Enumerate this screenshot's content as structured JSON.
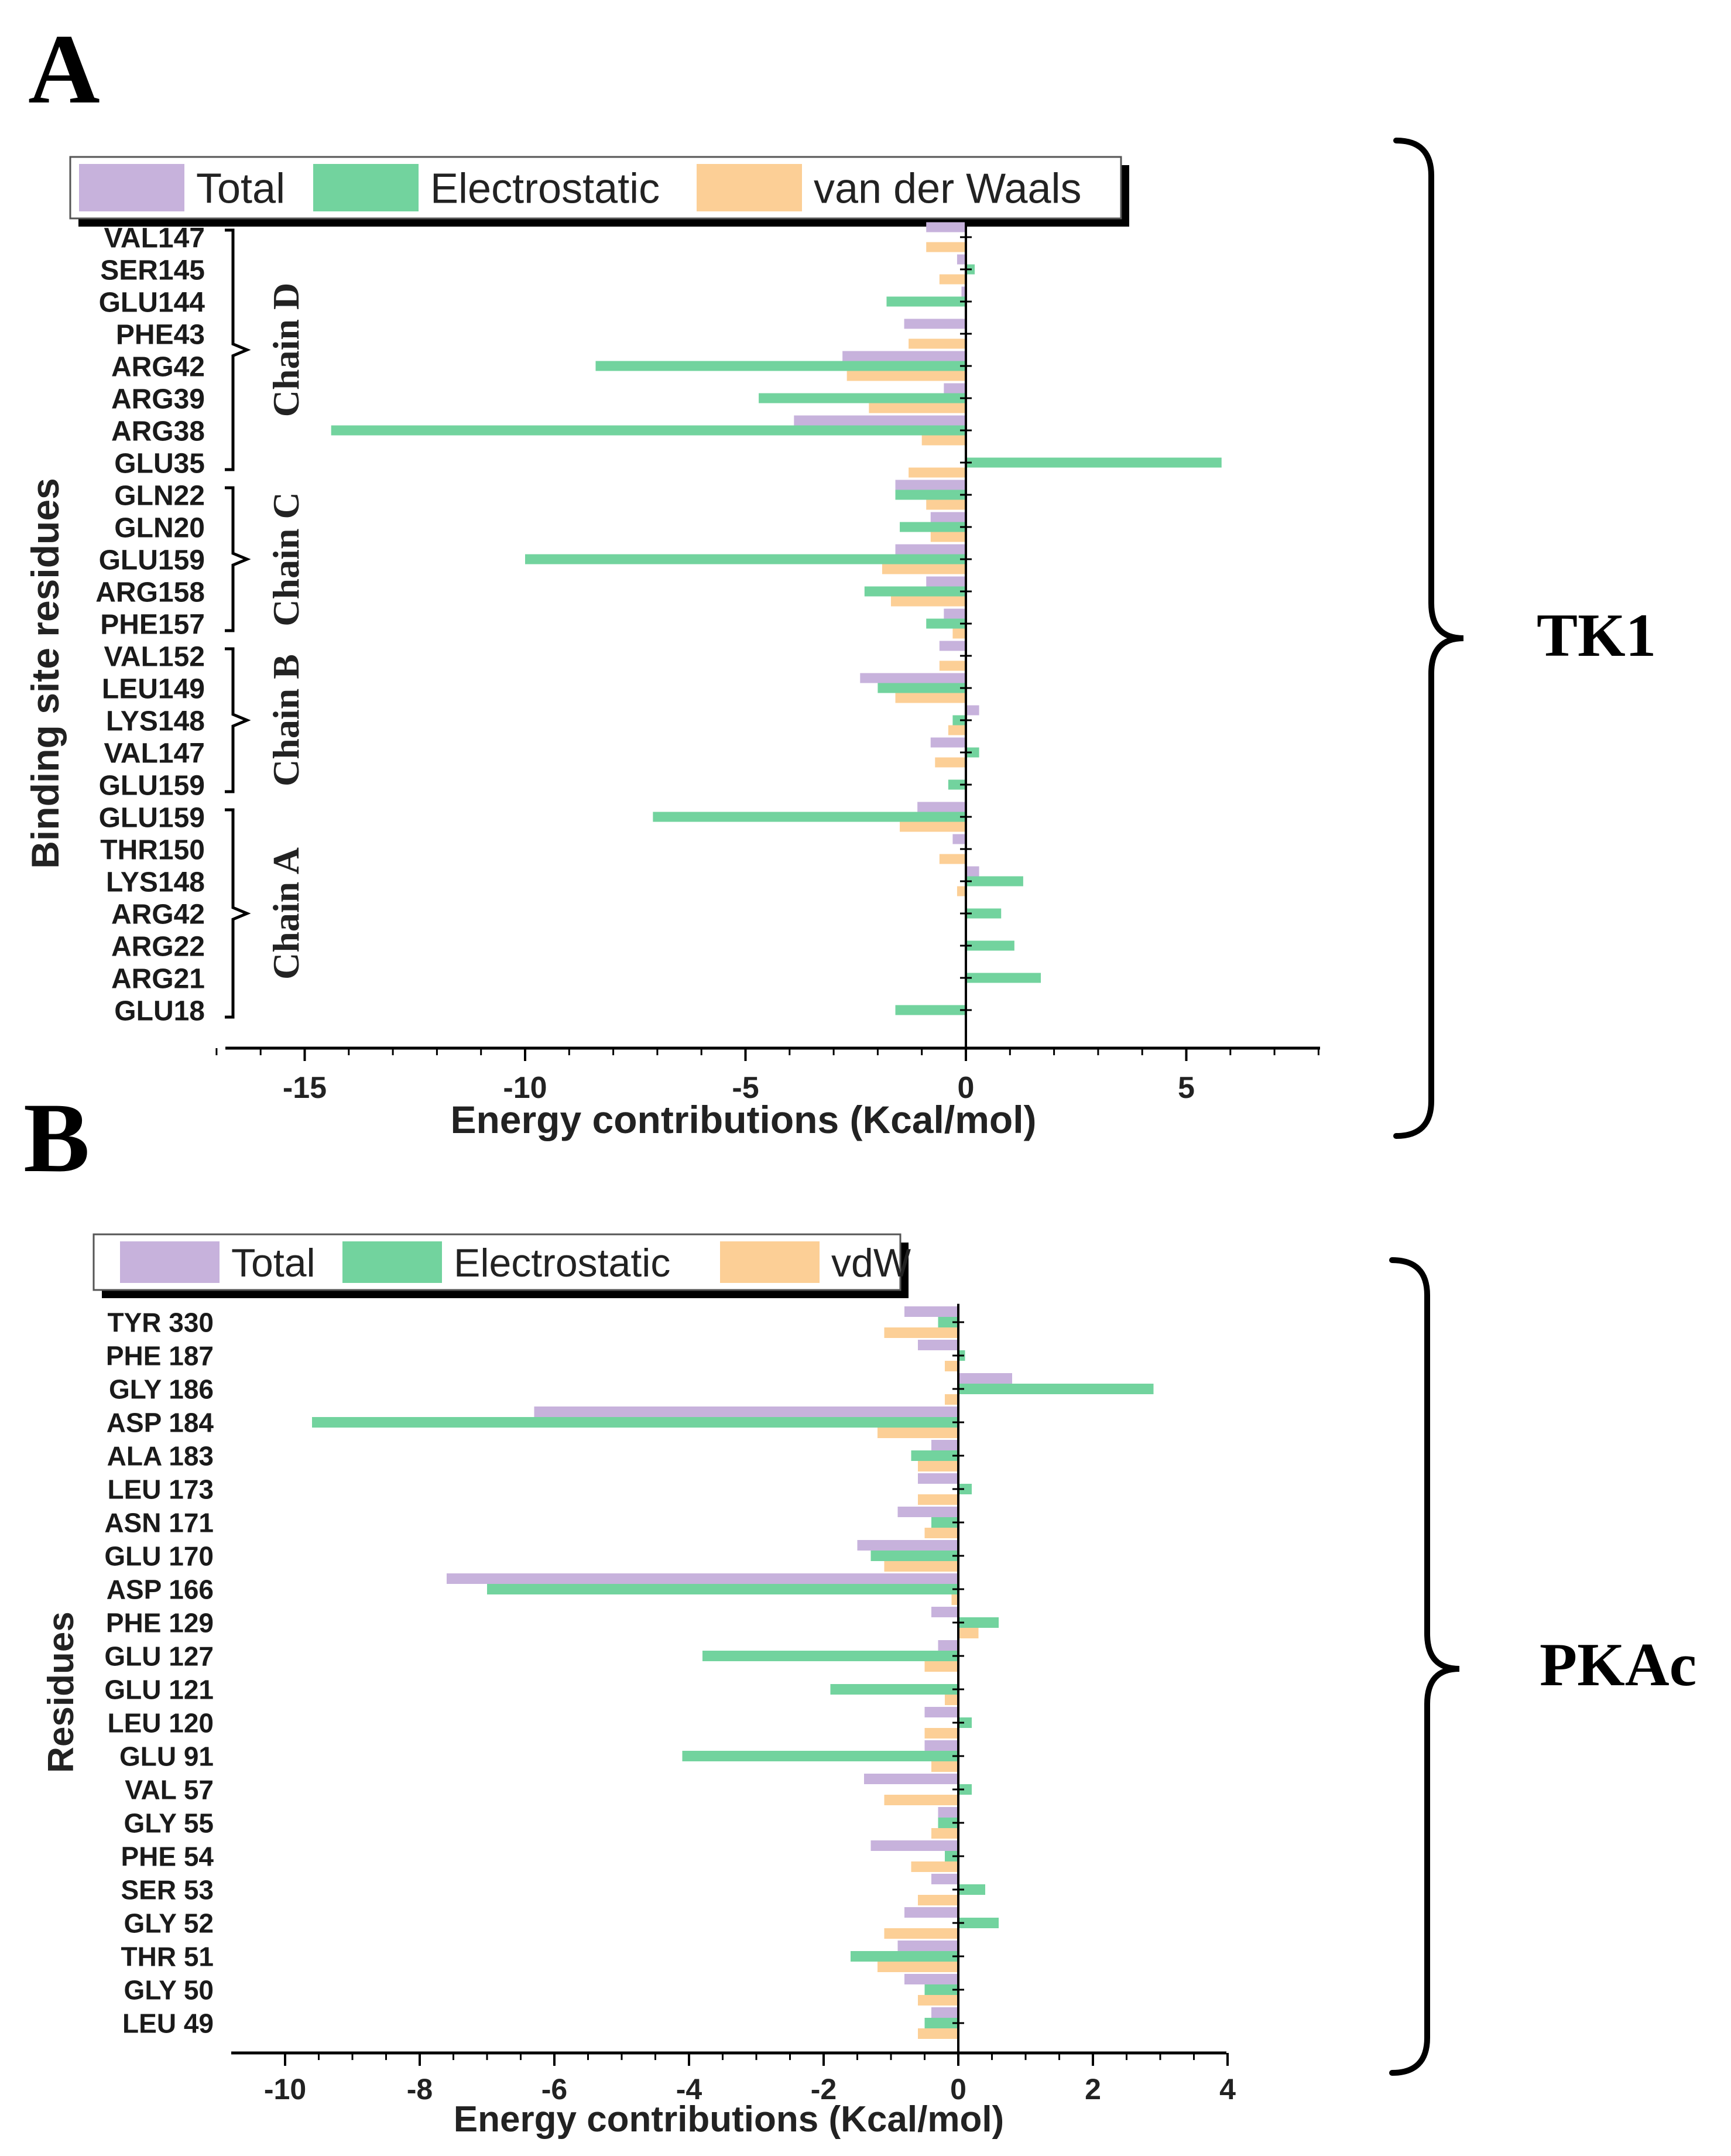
{
  "colors": {
    "total": "#c7b2dc",
    "electrostatic": "#72d39e",
    "vdw": "#fccf96"
  },
  "chart_data": [
    {
      "panel": "A",
      "type": "bar",
      "orientation": "horizontal",
      "protein": "TK1",
      "xlabel": "Energy contributions (Kcal/mol)",
      "ylabel": "Binding site residues",
      "xlim": [
        -17,
        8
      ],
      "xticks": [
        -15,
        -10,
        -5,
        0,
        5
      ],
      "legend": [
        "Total",
        "Electrostatic",
        "van der Waals"
      ],
      "legend_position": "top",
      "categories": [
        "VAL147",
        "SER145",
        "GLU144",
        "PHE43",
        "ARG42",
        "ARG39",
        "ARG38",
        "GLU35",
        "GLN22",
        "GLN20",
        "GLU159",
        "ARG158",
        "PHE157",
        "VAL152",
        "LEU149",
        "LYS148",
        "VAL147",
        "GLU159",
        "GLU159",
        "THR150",
        "LYS148",
        "ARG42",
        "ARG22",
        "ARG21",
        "GLU18"
      ],
      "groups": [
        {
          "label": "Chain D",
          "from": 0,
          "to": 7
        },
        {
          "label": "Chain C",
          "from": 8,
          "to": 12
        },
        {
          "label": "Chain B",
          "from": 13,
          "to": 17
        },
        {
          "label": "Chain A",
          "from": 18,
          "to": 24
        }
      ],
      "series": [
        {
          "name": "Total",
          "values": [
            -0.9,
            -0.2,
            -0.1,
            -1.4,
            -2.8,
            -0.5,
            -3.9,
            0.0,
            -1.6,
            -0.8,
            -1.6,
            -0.9,
            -0.5,
            -0.6,
            -2.4,
            0.3,
            -0.8,
            0.0,
            -1.1,
            -0.3,
            0.3,
            0.0,
            0.0,
            0.0,
            0.0
          ]
        },
        {
          "name": "Electrostatic",
          "values": [
            0.0,
            0.2,
            -1.8,
            0.0,
            -8.4,
            -4.7,
            -14.4,
            5.8,
            -1.6,
            -1.5,
            -10.0,
            -2.3,
            -0.9,
            0.0,
            -2.0,
            -0.3,
            0.3,
            -0.4,
            -7.1,
            0.0,
            1.3,
            0.8,
            1.1,
            1.7,
            -1.6
          ]
        },
        {
          "name": "van der Waals",
          "values": [
            -0.9,
            -0.6,
            0.0,
            -1.3,
            -2.7,
            -2.2,
            -1.0,
            -1.3,
            -0.9,
            -0.8,
            -1.9,
            -1.7,
            -0.3,
            -0.6,
            -1.6,
            -0.4,
            -0.7,
            0.0,
            -1.5,
            -0.6,
            -0.2,
            0.0,
            0.0,
            0.0,
            0.0
          ]
        }
      ]
    },
    {
      "panel": "B",
      "type": "bar",
      "orientation": "horizontal",
      "protein": "PKAc",
      "xlabel": "Energy contributions (Kcal/mol)",
      "ylabel": "Residues",
      "xlim": [
        -10.8,
        4
      ],
      "xticks": [
        -10,
        -8,
        -6,
        -4,
        -2,
        0,
        2,
        4
      ],
      "legend": [
        "Total",
        "Electrostatic",
        "vdW"
      ],
      "legend_position": "top",
      "categories": [
        "TYR 330",
        "PHE 187",
        "GLY 186",
        "ASP 184",
        "ALA 183",
        "LEU 173",
        "ASN 171",
        "GLU 170",
        "ASP 166",
        "PHE 129",
        "GLU 127",
        "GLU 121",
        "LEU 120",
        "GLU 91",
        "VAL 57",
        "GLY 55",
        "PHE 54",
        "SER 53",
        "GLY 52",
        "THR 51",
        "GLY 50",
        "LEU 49"
      ],
      "series": [
        {
          "name": "Total",
          "values": [
            -0.8,
            -0.6,
            0.8,
            -6.3,
            -0.4,
            -0.6,
            -0.9,
            -1.5,
            -7.6,
            -0.4,
            -0.3,
            0.0,
            -0.5,
            -0.5,
            -1.4,
            -0.3,
            -1.3,
            -0.4,
            -0.8,
            -0.9,
            -0.8,
            -0.4
          ]
        },
        {
          "name": "Electrostatic",
          "values": [
            -0.3,
            0.1,
            2.9,
            -9.6,
            -0.7,
            0.2,
            -0.4,
            -1.3,
            -7.0,
            0.6,
            -3.8,
            -1.9,
            0.2,
            -4.1,
            0.2,
            -0.3,
            -0.2,
            0.4,
            0.6,
            -1.6,
            -0.5,
            -0.5
          ]
        },
        {
          "name": "vdW",
          "values": [
            -1.1,
            -0.2,
            -0.2,
            -1.2,
            -0.6,
            -0.6,
            -0.5,
            -1.1,
            -0.1,
            0.3,
            -0.5,
            -0.2,
            -0.5,
            -0.4,
            -1.1,
            -0.4,
            -0.7,
            -0.6,
            -1.1,
            -1.2,
            -0.6,
            -0.6
          ]
        }
      ]
    }
  ]
}
